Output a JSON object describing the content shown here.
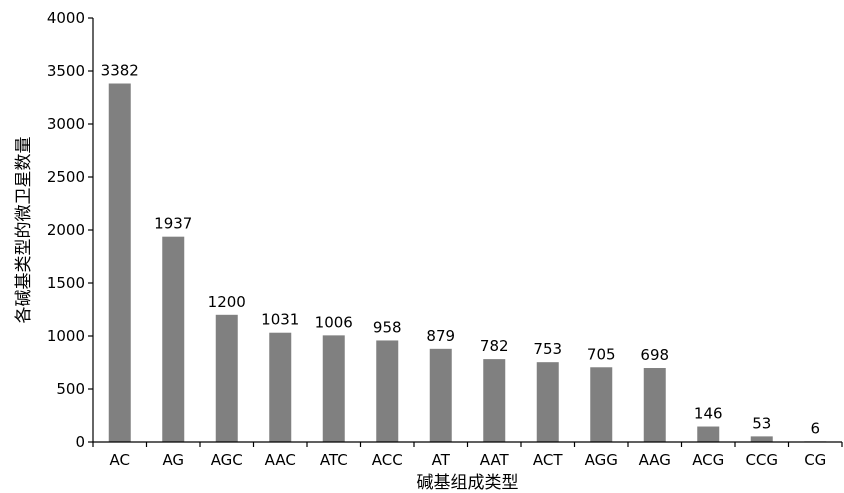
{
  "chart_data": {
    "type": "bar",
    "title": "",
    "xlabel": "碱基组成类型",
    "ylabel": "各碱基类型的微卫星数量",
    "categories": [
      "AC",
      "AG",
      "AGC",
      "AAC",
      "ATC",
      "ACC",
      "AT",
      "AAT",
      "ACT",
      "AGG",
      "AAG",
      "ACG",
      "CCG",
      "CG"
    ],
    "values": [
      3382,
      1937,
      1200,
      1031,
      1006,
      958,
      879,
      782,
      753,
      705,
      698,
      146,
      53,
      6
    ],
    "ylim": [
      0,
      4000
    ],
    "yticks": [
      0,
      500,
      1000,
      1500,
      2000,
      2500,
      3000,
      3500,
      4000
    ],
    "grid": false,
    "legend": "none",
    "bar_color": "#808080"
  }
}
